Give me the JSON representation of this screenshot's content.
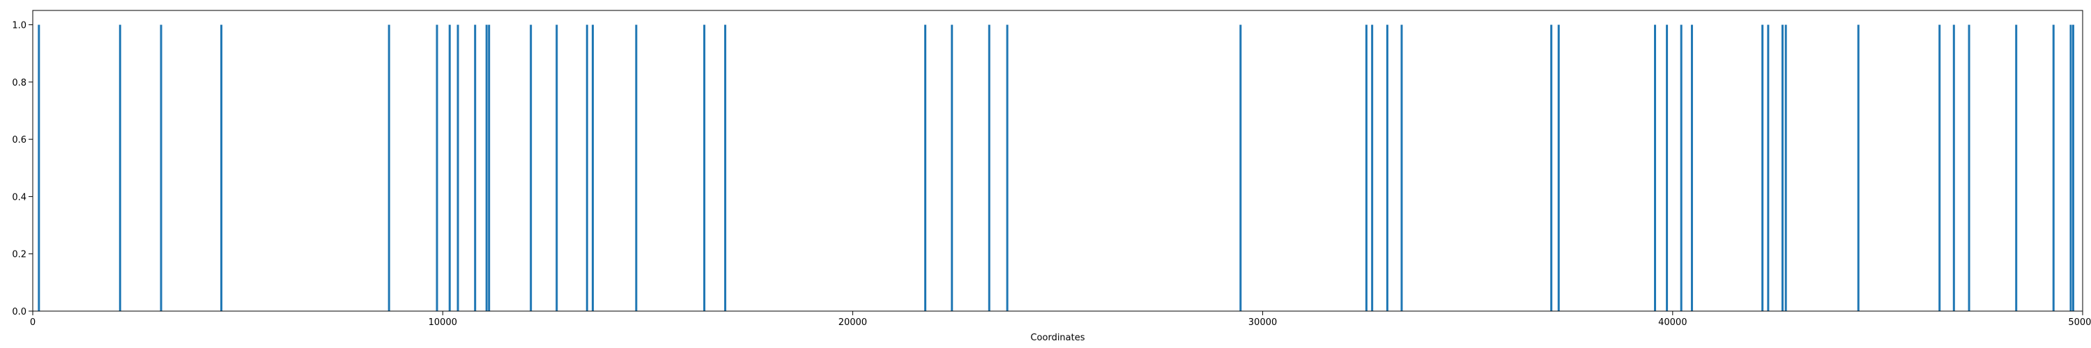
{
  "chart_data": {
    "type": "bar",
    "title": "",
    "xlabel": "Coordinates",
    "ylabel": "",
    "xlim": [
      0,
      50000
    ],
    "ylim": [
      0,
      1.05
    ],
    "grid": false,
    "x_ticks": [
      0,
      10000,
      20000,
      30000,
      40000,
      50000
    ],
    "y_ticks": [
      0.0,
      0.2,
      0.4,
      0.6,
      0.8,
      1.0
    ],
    "x_tick_labels": [
      "0",
      "10000",
      "20000",
      "30000",
      "40000",
      "50000"
    ],
    "y_tick_labels": [
      "0.0",
      "0.2",
      "0.4",
      "0.6",
      "0.8",
      "1.0"
    ],
    "color": "#1f77b4",
    "x": [
      150,
      2130,
      3130,
      4600,
      8690,
      9860,
      10170,
      10370,
      10790,
      11070,
      11130,
      12150,
      12780,
      13520,
      13660,
      14720,
      16380,
      16890,
      21770,
      22420,
      23330,
      23770,
      29460,
      32530,
      32670,
      33040,
      33390,
      37040,
      37220,
      39570,
      39860,
      40210,
      40470,
      42190,
      42330,
      42680,
      42760,
      44530,
      46510,
      46860,
      47230,
      48380,
      49290,
      49710,
      49770
    ],
    "values": [
      1,
      1,
      1,
      1,
      1,
      1,
      1,
      1,
      1,
      1,
      1,
      1,
      1,
      1,
      1,
      1,
      1,
      1,
      1,
      1,
      1,
      1,
      1,
      1,
      1,
      1,
      1,
      1,
      1,
      1,
      1,
      1,
      1,
      1,
      1,
      1,
      1,
      1,
      1,
      1,
      1,
      1,
      1,
      1,
      1
    ]
  }
}
